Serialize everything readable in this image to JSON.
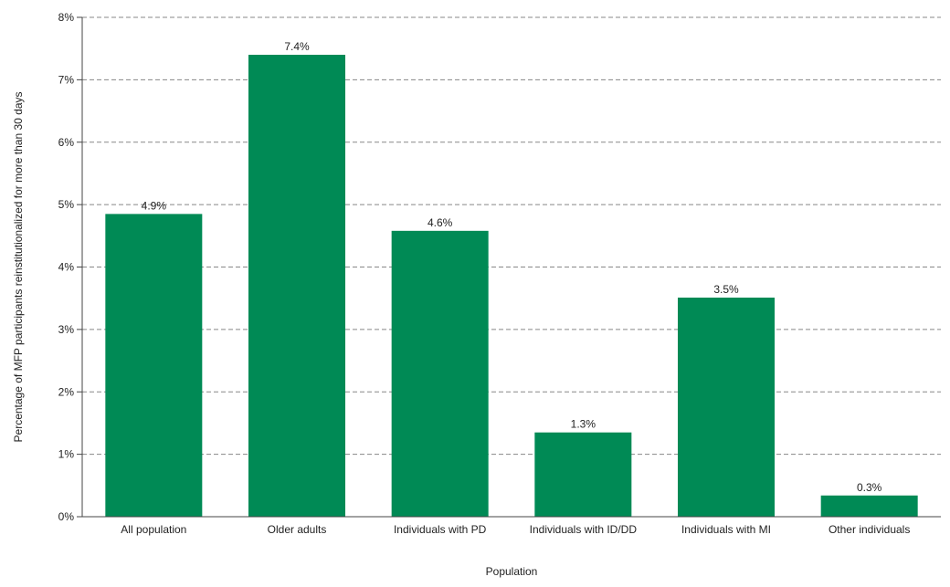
{
  "chart_data": {
    "type": "bar",
    "title": "",
    "xlabel": "Population",
    "ylabel": "Percentage of MFP participants reinstitutionalized for more than 30 days",
    "categories": [
      "All population",
      "Older adults",
      "Individuals with PD",
      "Individuals with ID/DD",
      "Individuals with MI",
      "Other individuals"
    ],
    "values": [
      4.85,
      7.4,
      4.58,
      1.35,
      3.51,
      0.34
    ],
    "data_labels": [
      "4.9%",
      "7.4%",
      "4.6%",
      "1.3%",
      "3.5%",
      "0.3%"
    ],
    "ylim": [
      0,
      8
    ],
    "yticks": [
      0,
      1,
      2,
      3,
      4,
      5,
      6,
      7,
      8
    ],
    "ytick_labels": [
      "0%",
      "1%",
      "2%",
      "3%",
      "4%",
      "5%",
      "6%",
      "7%",
      "8%"
    ],
    "grid": true,
    "grid_style": "dashed",
    "bar_color": "#008a55",
    "grid_color": "#888888",
    "axis_color": "#444444"
  }
}
